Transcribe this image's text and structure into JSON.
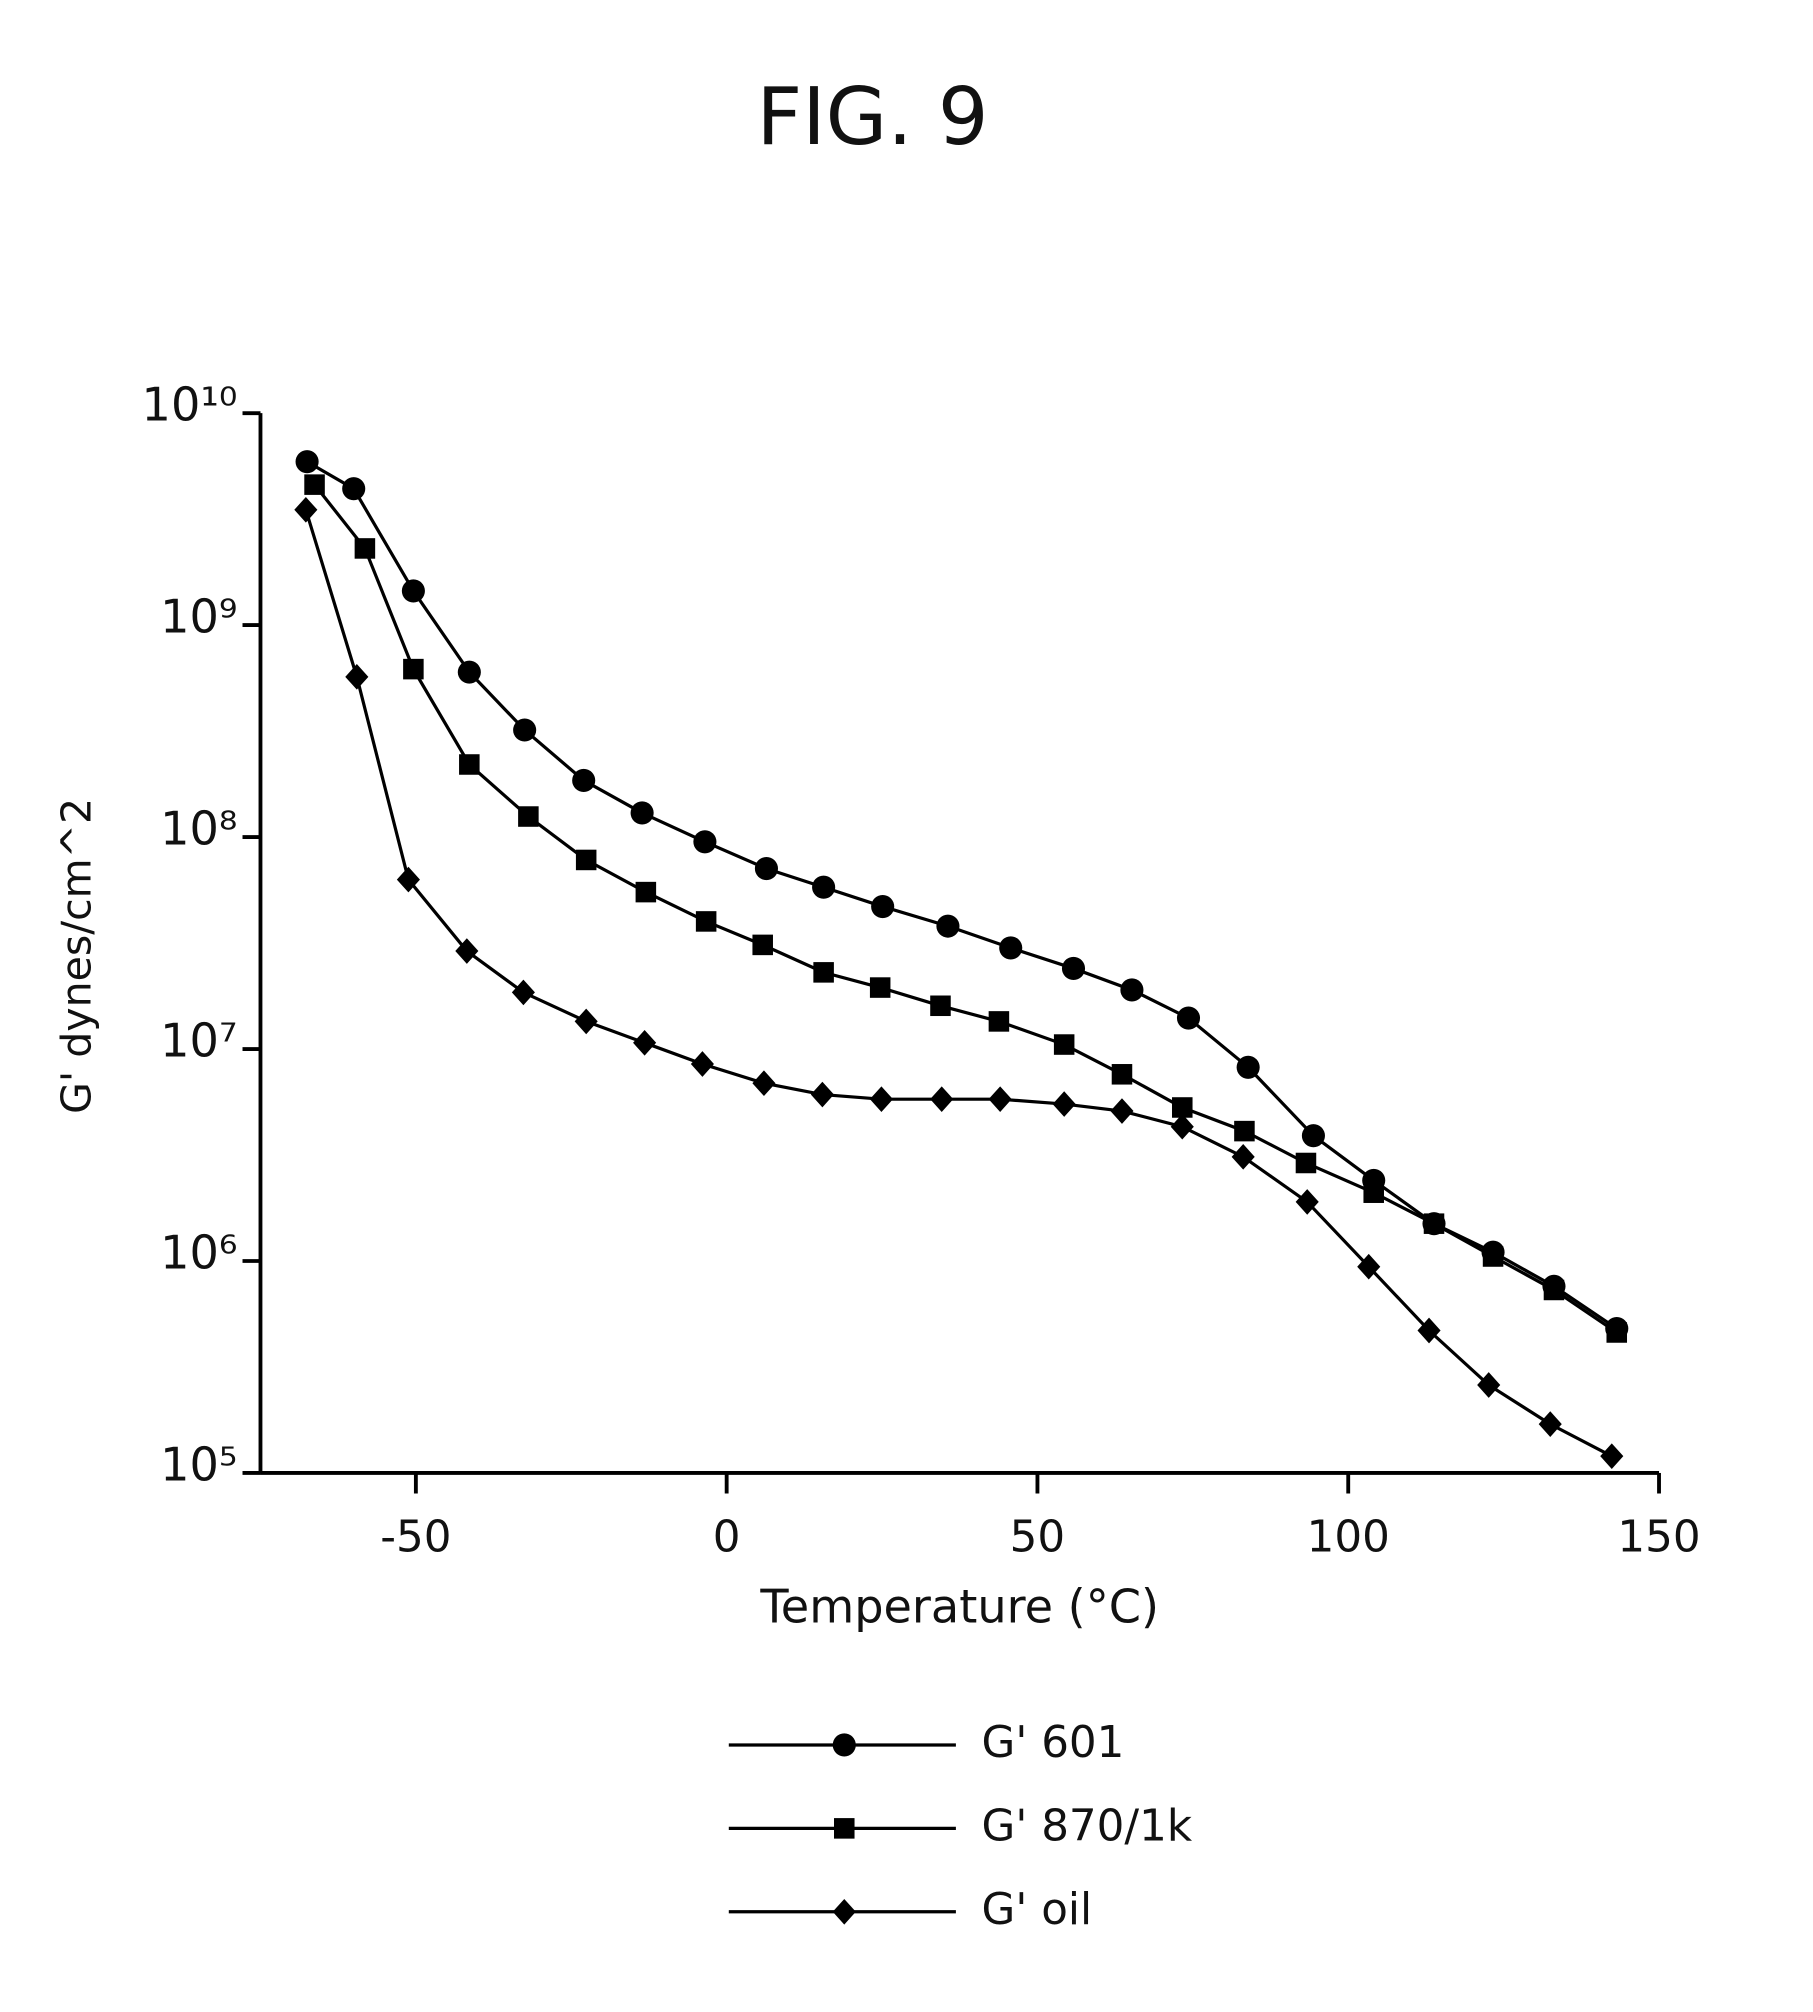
{
  "chart_data": {
    "type": "line",
    "title": "FIG. 9",
    "x_label": "Temperature (°C)",
    "y_label": "G' dynes/cm^2",
    "xlim": [
      -75,
      150
    ],
    "xticks": [
      -50,
      0,
      50,
      100,
      150
    ],
    "ylim": [
      100000,
      10000000000
    ],
    "yticks": [
      {
        "value": 100000,
        "label": "10⁵"
      },
      {
        "value": 1000000,
        "label": "10⁶"
      },
      {
        "value": 10000000,
        "label": "10⁷"
      },
      {
        "value": 100000000,
        "label": "10⁸"
      },
      {
        "value": 1000000000,
        "label": "10⁹"
      },
      {
        "value": 10000000000,
        "label": "10¹⁰"
      }
    ],
    "log_y": true,
    "grid": false,
    "legend": "bottom",
    "series": [
      {
        "name": "G' 601",
        "color": "#000000",
        "marker": "circle",
        "x": [
          -67.5,
          -60,
          -50.4,
          -41.4,
          -32.5,
          -23,
          -13.6,
          -3.5,
          6.4,
          15.6,
          25.1,
          35.6,
          45.7,
          55.8,
          65.2,
          74.3,
          83.9,
          94.4,
          104.1,
          113.8,
          123.3,
          133.1,
          143.2
        ],
        "values": [
          5900000000,
          4400000000,
          1450000000,
          600000000,
          320000000,
          185000000,
          130000000,
          95000000,
          71000000,
          58000000,
          47000000,
          38000000,
          30000000,
          24000000,
          19000000,
          14000000,
          8200000,
          3900000,
          2400000,
          1500000,
          1100000,
          760000,
          480000
        ]
      },
      {
        "name": "G' 870/1k",
        "color": "#000000",
        "marker": "square",
        "x": [
          -66.3,
          -58.2,
          -50.4,
          -41.4,
          -31.9,
          -22.6,
          -13,
          -3.3,
          5.8,
          15.6,
          24.7,
          34.4,
          43.8,
          54.3,
          63.6,
          73.3,
          83.3,
          93.2,
          104.1,
          113.8,
          123.3,
          133.1,
          143.2
        ],
        "values": [
          4600000000,
          2300000000,
          620000000,
          220000000,
          125000000,
          78000000,
          55000000,
          40000000,
          31000000,
          23000000,
          19500000,
          16000000,
          13500000,
          10500000,
          7600000,
          5300000,
          4100000,
          2900000,
          2100000,
          1500000,
          1050000,
          730000,
          460000
        ]
      },
      {
        "name": "G' oil",
        "color": "#000000",
        "marker": "diamond",
        "x": [
          -67.7,
          -59.5,
          -51.2,
          -41.8,
          -32.7,
          -22.6,
          -13.2,
          -3.9,
          6,
          15.4,
          24.9,
          34.6,
          44,
          54.3,
          63.6,
          73.3,
          83.1,
          93.4,
          103.3,
          113,
          122.6,
          132.5,
          142.4
        ],
        "values": [
          3500000000,
          570000000,
          63000000,
          29000000,
          18500000,
          13500000,
          10700000,
          8500000,
          6900000,
          6100000,
          5800000,
          5800000,
          5800000,
          5500000,
          5100000,
          4300000,
          3100000,
          1900000,
          940000,
          470000,
          260000,
          170000,
          120000
        ]
      }
    ]
  }
}
